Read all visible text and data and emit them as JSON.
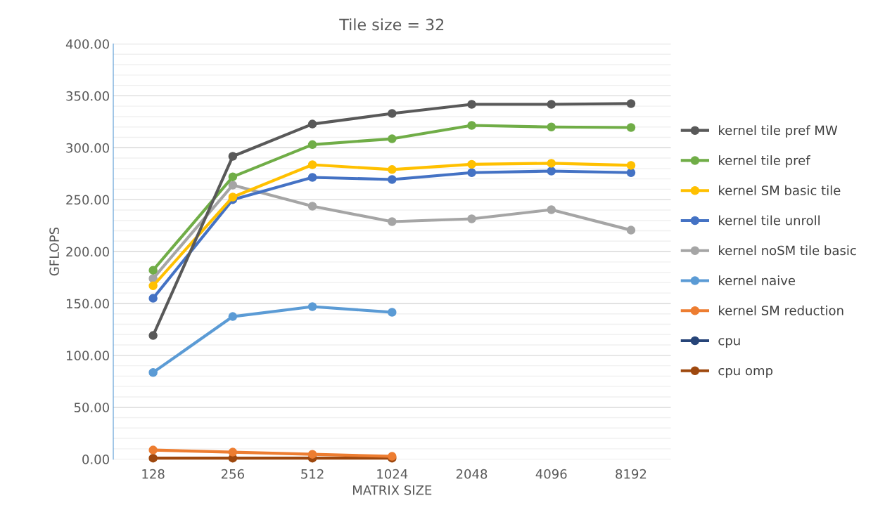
{
  "chart_data": {
    "type": "line",
    "title": "Tile size = 32",
    "xlabel": "MATRIX SIZE",
    "ylabel": "GFLOPS",
    "categories": [
      "128",
      "256",
      "512",
      "1024",
      "2048",
      "4096",
      "8192"
    ],
    "series": [
      {
        "name": "kernel tile pref MW",
        "color": "#595959",
        "values": [
          119.1,
          291.7,
          322.8,
          333.0,
          341.8,
          341.8,
          342.5
        ]
      },
      {
        "name": "kernel tile pref",
        "color": "#70ad47",
        "values": [
          182.0,
          272.0,
          303.0,
          308.6,
          321.5,
          320.0,
          319.5
        ]
      },
      {
        "name": "kernel SM basic tile",
        "color": "#ffc000",
        "values": [
          167.0,
          252.5,
          283.6,
          279.0,
          284.0,
          285.0,
          283.0
        ]
      },
      {
        "name": "kernel tile unroll",
        "color": "#4472c4",
        "values": [
          155.0,
          250.0,
          271.4,
          269.4,
          276.0,
          277.5,
          276.0
        ]
      },
      {
        "name": "kernel noSM tile basic",
        "color": "#a5a5a5",
        "values": [
          174.0,
          264.0,
          243.7,
          228.8,
          231.5,
          240.3,
          220.6
        ]
      },
      {
        "name": "kernel naive",
        "color": "#5b9bd5",
        "values": [
          83.5,
          137.4,
          146.9,
          141.5,
          null,
          null,
          null
        ]
      },
      {
        "name": "kernel SM reduction",
        "color": "#ed7d31",
        "values": [
          8.8,
          6.8,
          4.7,
          2.7,
          null,
          null,
          null
        ]
      },
      {
        "name": "cpu",
        "color": "#264478",
        "values": [
          null,
          null,
          null,
          null,
          null,
          null,
          null
        ]
      },
      {
        "name": "cpu omp",
        "color": "#9e480e",
        "values": [
          1.0,
          1.0,
          1.0,
          1.0,
          null,
          null,
          null
        ]
      }
    ],
    "ylim": [
      0,
      400
    ],
    "yticks": [
      {
        "value": 0,
        "label": "0.00"
      },
      {
        "value": 10,
        "label": null
      },
      {
        "value": 20,
        "label": null
      },
      {
        "value": 30,
        "label": null
      },
      {
        "value": 40,
        "label": null
      },
      {
        "value": 50,
        "label": "50.00"
      },
      {
        "value": 60,
        "label": null
      },
      {
        "value": 70,
        "label": null
      },
      {
        "value": 80,
        "label": null
      },
      {
        "value": 90,
        "label": null
      },
      {
        "value": 100,
        "label": "100.00"
      },
      {
        "value": 110,
        "label": null
      },
      {
        "value": 120,
        "label": null
      },
      {
        "value": 130,
        "label": null
      },
      {
        "value": 140,
        "label": null
      },
      {
        "value": 150,
        "label": "150.00"
      },
      {
        "value": 160,
        "label": null
      },
      {
        "value": 170,
        "label": null
      },
      {
        "value": 180,
        "label": null
      },
      {
        "value": 190,
        "label": null
      },
      {
        "value": 200,
        "label": "200.00"
      },
      {
        "value": 210,
        "label": null
      },
      {
        "value": 220,
        "label": null
      },
      {
        "value": 230,
        "label": null
      },
      {
        "value": 240,
        "label": null
      },
      {
        "value": 250,
        "label": "250.00"
      },
      {
        "value": 260,
        "label": null
      },
      {
        "value": 270,
        "label": null
      },
      {
        "value": 280,
        "label": null
      },
      {
        "value": 290,
        "label": null
      },
      {
        "value": 300,
        "label": "300.00"
      },
      {
        "value": 310,
        "label": null
      },
      {
        "value": 320,
        "label": null
      },
      {
        "value": 330,
        "label": null
      },
      {
        "value": 340,
        "label": null
      },
      {
        "value": 350,
        "label": "350.00"
      },
      {
        "value": 360,
        "label": null
      },
      {
        "value": 370,
        "label": null
      },
      {
        "value": 380,
        "label": null
      },
      {
        "value": 390,
        "label": null
      },
      {
        "value": 400,
        "label": "400.00"
      }
    ],
    "grid": "y",
    "legend": "right",
    "marker": "circle",
    "line_style": "solid"
  }
}
